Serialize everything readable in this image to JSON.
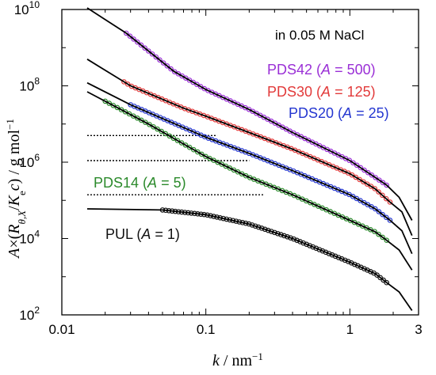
{
  "chart_data": {
    "type": "scatter",
    "x_scale": "log",
    "y_scale": "log",
    "xlim": [
      0.01,
      3
    ],
    "ylim": [
      100,
      10000000000
    ],
    "x_ticks": [
      {
        "value": 0.01,
        "label": "0.01"
      },
      {
        "value": 0.1,
        "label": "0.1"
      },
      {
        "value": 1,
        "label": "1"
      },
      {
        "value": 3,
        "label": "3"
      }
    ],
    "y_ticks": [
      {
        "value": 100,
        "base": "10",
        "exp": "2"
      },
      {
        "value": 10000,
        "base": "10",
        "exp": "4"
      },
      {
        "value": 1000000,
        "base": "10",
        "exp": "6"
      },
      {
        "value": 100000000,
        "base": "10",
        "exp": "8"
      },
      {
        "value": 10000000000,
        "base": "10",
        "exp": "10"
      }
    ],
    "xlabel": {
      "var": "k",
      "unit": " / nm",
      "unit_exp": "−1"
    },
    "ylabel": {
      "pre": "A",
      "times": "×(",
      "R": "R",
      "Rsub": "θ,X",
      "slash": "/",
      "K": "K",
      "Ksub": "e",
      "c": "c",
      "post": ") / g mol",
      "post_exp": "−1"
    },
    "annotation": "in 0.05 M NaCl",
    "grid": false,
    "series": [
      {
        "name": "PDS42",
        "A_label": "A",
        "A_value": "500",
        "color": "#9a2fd6",
        "data": [
          [
            0.028,
            2400000000.0
          ],
          [
            0.04,
            700000000.0
          ],
          [
            0.06,
            240000000.0
          ],
          [
            0.1,
            80000000.0
          ],
          [
            0.2,
            24000000.0
          ],
          [
            0.4,
            6000000.0
          ],
          [
            0.7,
            2200000.0
          ],
          [
            1.0,
            1100000.0
          ],
          [
            1.5,
            400000.0
          ],
          [
            1.8,
            250000.0
          ]
        ],
        "model": [
          [
            0.015,
            11000000000.0
          ],
          [
            0.028,
            2400000000.0
          ],
          [
            0.06,
            240000000.0
          ],
          [
            0.1,
            80000000.0
          ],
          [
            0.2,
            24000000.0
          ],
          [
            0.4,
            6000000.0
          ],
          [
            1.0,
            1100000.0
          ],
          [
            1.5,
            400000.0
          ],
          [
            1.8,
            250000.0
          ],
          [
            2.2,
            120000.0
          ],
          [
            2.7,
            30000.0
          ]
        ],
        "plateau": null
      },
      {
        "name": "PDS30",
        "A_label": "A",
        "A_value": "125",
        "color": "#e23a3a",
        "data": [
          [
            0.027,
            110000000.0
          ],
          [
            0.04,
            60000000.0
          ],
          [
            0.07,
            26000000.0
          ],
          [
            0.1,
            16000000.0
          ],
          [
            0.2,
            6000000.0
          ],
          [
            0.4,
            2200000.0
          ],
          [
            0.7,
            900000.0
          ],
          [
            1.0,
            500000.0
          ],
          [
            1.5,
            200000.0
          ],
          [
            1.9,
            90000.0
          ]
        ],
        "model": [
          [
            0.015,
            500000000.0
          ],
          [
            0.03,
            100000000.0
          ],
          [
            0.07,
            26000000.0
          ],
          [
            0.1,
            16000000.0
          ],
          [
            0.2,
            6000000.0
          ],
          [
            0.4,
            2200000.0
          ],
          [
            1.0,
            500000.0
          ],
          [
            1.5,
            200000.0
          ],
          [
            1.9,
            90000.0
          ],
          [
            2.3,
            50000.0
          ],
          [
            2.7,
            12000.0
          ]
        ],
        "plateau": {
          "y": 5000000.0,
          "x_end": 0.12
        }
      },
      {
        "name": "PDS20",
        "A_label": "A",
        "A_value": "25",
        "color": "#2436d0",
        "data": [
          [
            0.03,
            32000000.0
          ],
          [
            0.05,
            14000000.0
          ],
          [
            0.08,
            6500000.0
          ],
          [
            0.1,
            4500000.0
          ],
          [
            0.2,
            1700000.0
          ],
          [
            0.4,
            600000.0
          ],
          [
            0.7,
            240000.0
          ],
          [
            1.0,
            140000.0
          ],
          [
            1.5,
            60000.0
          ],
          [
            1.9,
            30000.0
          ]
        ],
        "model": [
          [
            0.015,
            120000000.0
          ],
          [
            0.03,
            32000000.0
          ],
          [
            0.08,
            6500000.0
          ],
          [
            0.1,
            4500000.0
          ],
          [
            0.2,
            1700000.0
          ],
          [
            0.4,
            600000.0
          ],
          [
            1.0,
            140000.0
          ],
          [
            1.5,
            60000.0
          ],
          [
            1.9,
            30000.0
          ],
          [
            2.3,
            16000.0
          ],
          [
            2.7,
            4000.0
          ]
        ],
        "plateau": {
          "y": 1100000.0,
          "x_end": 0.2
        }
      },
      {
        "name": "PDS14",
        "A_label": "A",
        "A_value": "5",
        "color": "#2b8a2b",
        "data": [
          [
            0.02,
            40000000.0
          ],
          [
            0.04,
            10000000.0
          ],
          [
            0.07,
            3000000.0
          ],
          [
            0.1,
            1400000.0
          ],
          [
            0.2,
            400000.0
          ],
          [
            0.4,
            140000.0
          ],
          [
            0.7,
            55000.0
          ],
          [
            1.0,
            30000.0
          ],
          [
            1.5,
            15000.0
          ],
          [
            1.8,
            9000.0
          ]
        ],
        "model": [
          [
            0.015,
            70000000.0
          ],
          [
            0.04,
            10000000.0
          ],
          [
            0.07,
            3000000.0
          ],
          [
            0.1,
            1400000.0
          ],
          [
            0.2,
            400000.0
          ],
          [
            0.4,
            140000.0
          ],
          [
            1.0,
            30000.0
          ],
          [
            1.5,
            15000.0
          ],
          [
            1.8,
            9000.0
          ],
          [
            2.2,
            5000.0
          ],
          [
            2.7,
            1500.0
          ]
        ],
        "plateau": {
          "y": 140000.0,
          "x_end": 0.25
        }
      },
      {
        "name": "PUL",
        "A_label": "A",
        "A_value": "1",
        "color": "#111111",
        "data": [
          [
            0.05,
            52000.0
          ],
          [
            0.08,
            48000.0
          ],
          [
            0.1,
            42000.0
          ],
          [
            0.2,
            24000.0
          ],
          [
            0.4,
            10000.0
          ],
          [
            0.7,
            4600.0
          ],
          [
            1.0,
            2400.0
          ],
          [
            1.5,
            1200.0
          ],
          [
            1.8,
            700
          ]
        ],
        "model": [
          [
            0.015,
            60000.0
          ],
          [
            0.05,
            56000.0
          ],
          [
            0.1,
            42000.0
          ],
          [
            0.2,
            24000.0
          ],
          [
            0.4,
            10000.0
          ],
          [
            1.0,
            2400.0
          ],
          [
            1.5,
            1200.0
          ],
          [
            1.8,
            700
          ],
          [
            2.2,
            400
          ],
          [
            2.7,
            130
          ]
        ],
        "plateau": null
      }
    ]
  }
}
